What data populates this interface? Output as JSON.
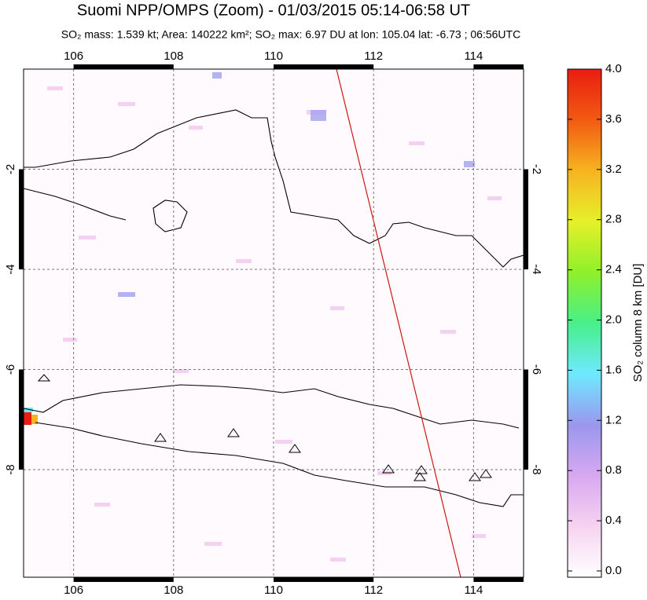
{
  "chart_data": {
    "type": "map",
    "title": "Suomi NPP/OMPS (Zoom) - 01/03/2015 05:14-06:58 UT",
    "subtitle": "SO₂ mass: 1.539 kt; Area: 140222 km²; SO₂ max: 6.97 DU at lon: 105.04 lat: -6.73 ; 06:56UTC",
    "xlim": [
      105,
      115
    ],
    "xticks": [
      106,
      108,
      110,
      112,
      114
    ],
    "ylim": [
      -10.15,
      0
    ],
    "yticks": [
      -2,
      -4,
      -6,
      -8
    ],
    "grid": true,
    "colorbar": {
      "label": "SO₂ column 8 km [DU]",
      "lim": [
        0,
        4
      ],
      "ticks": [
        {
          "value": 0,
          "label": "0.0"
        },
        {
          "value": 0.4,
          "label": "0.4"
        },
        {
          "value": 0.8,
          "label": "0.8"
        },
        {
          "value": 1.2,
          "label": "1.2"
        },
        {
          "value": 1.6,
          "label": "1.6"
        },
        {
          "value": 2,
          "label": "2.0"
        },
        {
          "value": 2.4,
          "label": "2.4"
        },
        {
          "value": 2.8,
          "label": "2.8"
        },
        {
          "value": 3.2,
          "label": "3.2"
        },
        {
          "value": 3.6,
          "label": "3.6"
        },
        {
          "value": 4,
          "label": "4.0"
        }
      ],
      "colors": [
        "#ffffff",
        "#f6d3f0",
        "#d7a8f0",
        "#9a97ee",
        "#6fe9ff",
        "#47f08a",
        "#8ff02a",
        "#e6f02a",
        "#f7b320",
        "#f25a12",
        "#e81e10"
      ]
    }
  }
}
